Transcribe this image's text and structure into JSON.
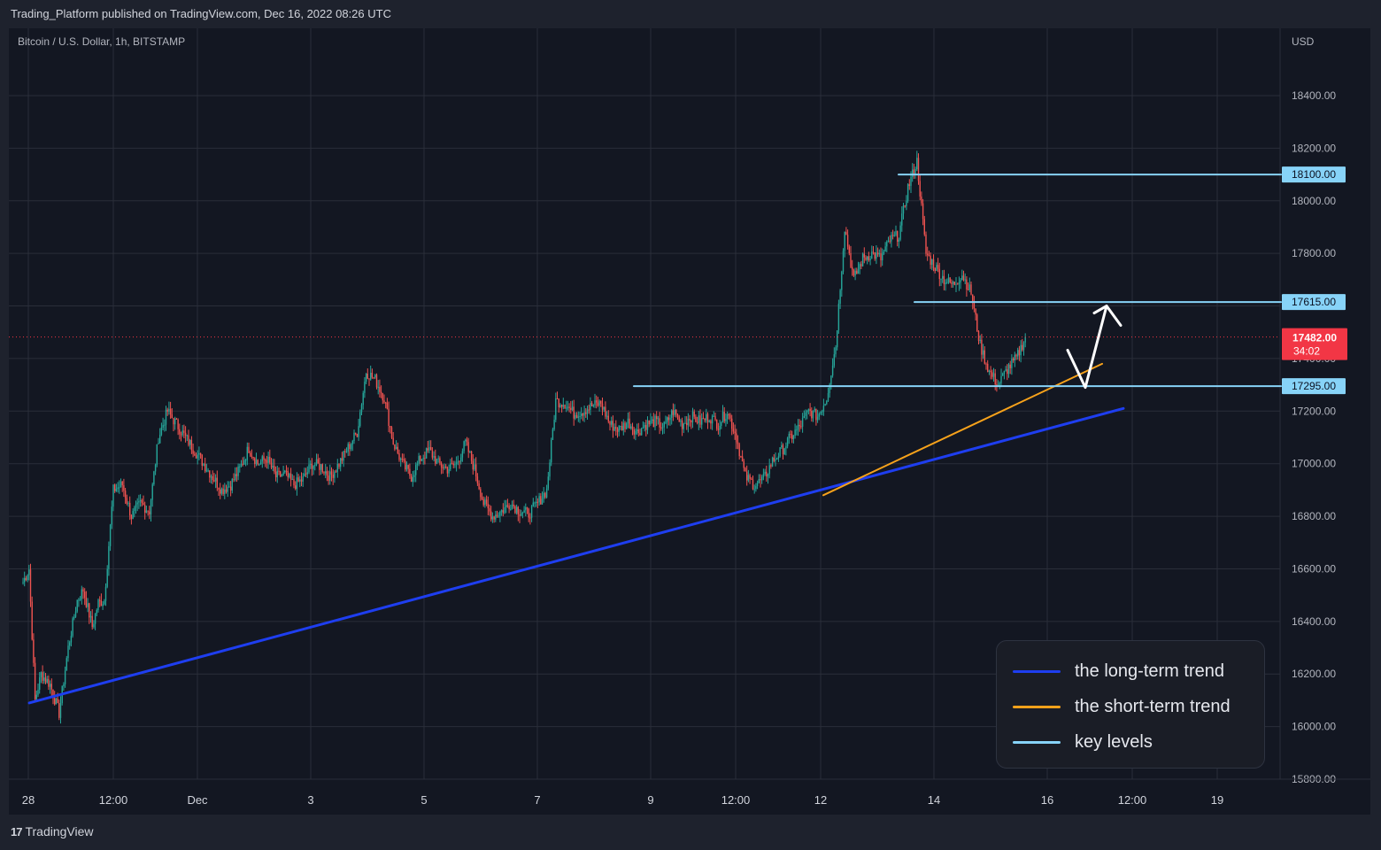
{
  "header": {
    "publisher": "Trading_Platform published on TradingView.com, Dec 16, 2022 08:26 UTC"
  },
  "footer": {
    "brand": "TradingView",
    "logo_icon": "tradingview-logo-icon"
  },
  "chart_data": {
    "type": "candlestick",
    "title": "Bitcoin / U.S. Dollar, 1h, BITSTAMP",
    "currency": "USD",
    "ylim": [
      15750,
      18600
    ],
    "y_ticks": [
      "18400.00",
      "18200.00",
      "18000.00",
      "17800.00",
      "17600.00",
      "17400.00",
      "17200.00",
      "17000.00",
      "16800.00",
      "16600.00",
      "16400.00",
      "16200.00",
      "16000.00",
      "15800.00"
    ],
    "x_ticks": [
      "28",
      "12:00",
      "Dec",
      "3",
      "5",
      "7",
      "9",
      "12:00",
      "12",
      "14",
      "16",
      "12:00",
      "19"
    ],
    "grid": true,
    "colors": {
      "up": "#26a69a",
      "down": "#ef5350",
      "background": "#131722",
      "grid": "#2a2e39"
    },
    "price_path": [
      [
        0,
        16550
      ],
      [
        4,
        16600
      ],
      [
        8,
        16100
      ],
      [
        12,
        16200
      ],
      [
        18,
        16160
      ],
      [
        24,
        16050
      ],
      [
        30,
        16300
      ],
      [
        36,
        16480
      ],
      [
        40,
        16520
      ],
      [
        46,
        16380
      ],
      [
        50,
        16470
      ],
      [
        54,
        16480
      ],
      [
        60,
        16900
      ],
      [
        66,
        16920
      ],
      [
        72,
        16800
      ],
      [
        78,
        16850
      ],
      [
        84,
        16820
      ],
      [
        90,
        17100
      ],
      [
        96,
        17200
      ],
      [
        102,
        17150
      ],
      [
        108,
        17100
      ],
      [
        114,
        17050
      ],
      [
        120,
        17000
      ],
      [
        126,
        16950
      ],
      [
        132,
        16900
      ],
      [
        138,
        16920
      ],
      [
        144,
        16980
      ],
      [
        150,
        17060
      ],
      [
        156,
        17000
      ],
      [
        162,
        17020
      ],
      [
        168,
        16950
      ],
      [
        174,
        16960
      ],
      [
        180,
        16920
      ],
      [
        186,
        16940
      ],
      [
        192,
        17000
      ],
      [
        198,
        16990
      ],
      [
        204,
        16950
      ],
      [
        210,
        17000
      ],
      [
        216,
        17060
      ],
      [
        222,
        17120
      ],
      [
        228,
        17350
      ],
      [
        234,
        17320
      ],
      [
        240,
        17250
      ],
      [
        246,
        17080
      ],
      [
        252,
        17000
      ],
      [
        258,
        16950
      ],
      [
        264,
        17020
      ],
      [
        270,
        17050
      ],
      [
        276,
        17000
      ],
      [
        282,
        16980
      ],
      [
        288,
        17000
      ],
      [
        294,
        17080
      ],
      [
        300,
        16980
      ],
      [
        306,
        16850
      ],
      [
        312,
        16800
      ],
      [
        318,
        16820
      ],
      [
        324,
        16850
      ],
      [
        330,
        16820
      ],
      [
        336,
        16810
      ],
      [
        342,
        16850
      ],
      [
        348,
        16900
      ],
      [
        354,
        17240
      ],
      [
        360,
        17230
      ],
      [
        366,
        17190
      ],
      [
        372,
        17200
      ],
      [
        378,
        17220
      ],
      [
        384,
        17230
      ],
      [
        390,
        17150
      ],
      [
        396,
        17130
      ],
      [
        402,
        17160
      ],
      [
        408,
        17120
      ],
      [
        414,
        17150
      ],
      [
        420,
        17160
      ],
      [
        426,
        17140
      ],
      [
        432,
        17200
      ],
      [
        438,
        17150
      ],
      [
        444,
        17180
      ],
      [
        450,
        17160
      ],
      [
        456,
        17180
      ],
      [
        462,
        17150
      ],
      [
        468,
        17200
      ],
      [
        474,
        17100
      ],
      [
        480,
        16950
      ],
      [
        486,
        16920
      ],
      [
        492,
        16940
      ],
      [
        498,
        17010
      ],
      [
        504,
        17050
      ],
      [
        510,
        17100
      ],
      [
        516,
        17140
      ],
      [
        522,
        17200
      ],
      [
        528,
        17180
      ],
      [
        534,
        17250
      ],
      [
        540,
        17450
      ],
      [
        546,
        17900
      ],
      [
        552,
        17700
      ],
      [
        558,
        17780
      ],
      [
        564,
        17800
      ],
      [
        570,
        17780
      ],
      [
        576,
        17850
      ],
      [
        582,
        17870
      ],
      [
        588,
        18050
      ],
      [
        594,
        18150
      ],
      [
        600,
        17800
      ],
      [
        606,
        17750
      ],
      [
        612,
        17700
      ],
      [
        618,
        17680
      ],
      [
        624,
        17720
      ],
      [
        630,
        17650
      ],
      [
        636,
        17450
      ],
      [
        642,
        17350
      ],
      [
        648,
        17300
      ],
      [
        654,
        17360
      ],
      [
        660,
        17400
      ],
      [
        663,
        17440
      ],
      [
        666,
        17482
      ]
    ],
    "bars_total": 666,
    "ohlc_extremes": {
      "high": 18370,
      "low": 16010
    },
    "lines": [
      {
        "name": "the long-term trend",
        "color": "#1e3ef0",
        "points": [
          [
            3,
            16090
          ],
          [
            720,
            17210
          ]
        ]
      },
      {
        "name": "the short-term trend",
        "color": "#f7a21b",
        "points": [
          [
            546,
            16880
          ],
          [
            700,
            17380
          ]
        ]
      },
      {
        "name": "key levels",
        "color": "#87d3f8",
        "points": [
          [
            605,
            18100
          ],
          [
            1200,
            18100
          ]
        ]
      },
      {
        "name": "key levels",
        "color": "#87d3f8",
        "points": [
          [
            615,
            17615
          ],
          [
            1200,
            17615
          ]
        ]
      },
      {
        "name": "key levels",
        "color": "#87d3f8",
        "points": [
          [
            410,
            17295
          ],
          [
            1200,
            17295
          ]
        ]
      }
    ],
    "arrow_path": {
      "color": "#ffffff",
      "points": [
        [
          1206,
          17432
        ],
        [
          1226,
          17290
        ],
        [
          1248,
          17600
        ]
      ]
    },
    "level_labels": [
      {
        "value": "18100.00",
        "color": "#87d3f8"
      },
      {
        "value": "17615.00",
        "color": "#87d3f8"
      },
      {
        "value": "17295.00",
        "color": "#87d3f8"
      }
    ],
    "last_price": {
      "value": "17482.00",
      "countdown": "34:02",
      "color": "#f23645"
    },
    "legend": [
      {
        "label": "the long-term trend",
        "color": "#1e3ef0"
      },
      {
        "label": "the short-term trend",
        "color": "#f7a21b"
      },
      {
        "label": "key levels",
        "color": "#87d3f8"
      }
    ]
  }
}
